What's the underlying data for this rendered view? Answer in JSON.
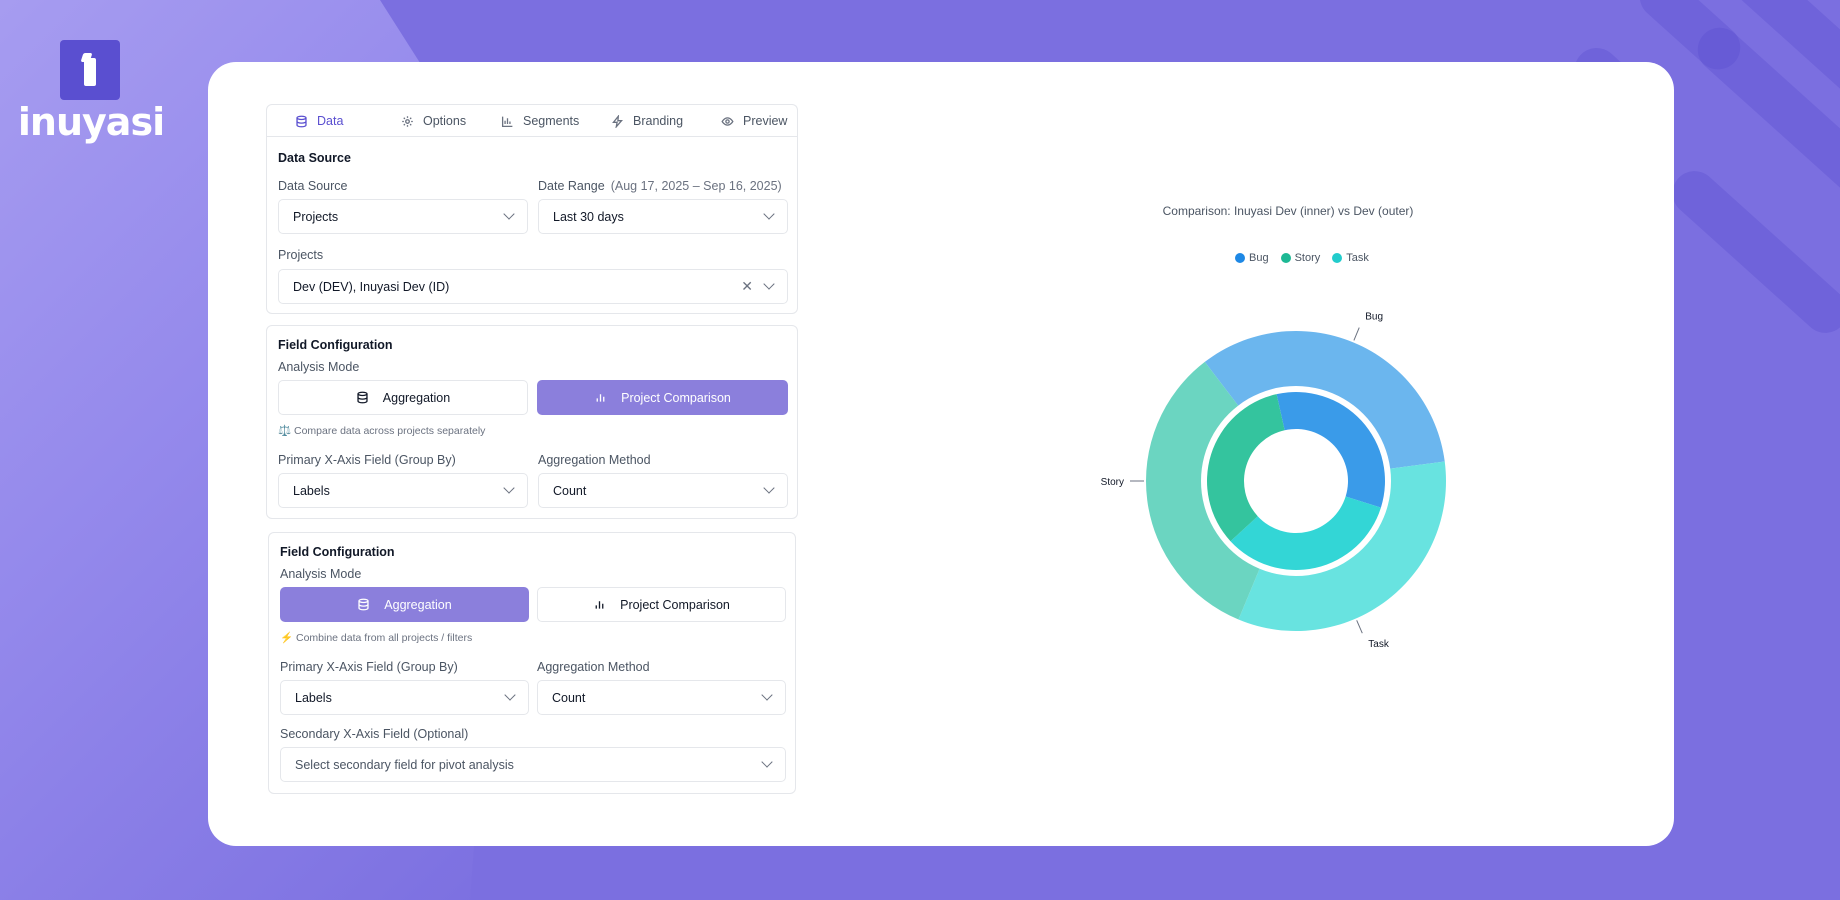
{
  "brand": {
    "name": "inuyasi"
  },
  "tabs": [
    {
      "label": "Data",
      "icon": "database-icon",
      "active": true
    },
    {
      "label": "Options",
      "icon": "gear-icon",
      "active": false
    },
    {
      "label": "Segments",
      "icon": "bar-chart-icon",
      "active": false
    },
    {
      "label": "Branding",
      "icon": "lightning-icon",
      "active": false
    },
    {
      "label": "Preview",
      "icon": "eye-icon",
      "active": false
    }
  ],
  "data_source": {
    "title": "Data Source",
    "source_label": "Data Source",
    "source_value": "Projects",
    "date_range_label": "Date Range",
    "date_range_hint": "(Aug 17, 2025 – Sep 16, 2025)",
    "date_range_value": "Last 30 days",
    "projects_label": "Projects",
    "projects_value": "Dev (DEV), Inuyasi Dev (ID)"
  },
  "field_config_1": {
    "title": "Field Configuration",
    "mode_label": "Analysis Mode",
    "aggregation_label": "Aggregation",
    "comparison_label": "Project Comparison",
    "active_mode": "comparison",
    "hint": "⚖️ Compare data across projects separately",
    "primary_label": "Primary X-Axis Field (Group By)",
    "primary_value": "Labels",
    "method_label": "Aggregation Method",
    "method_value": "Count"
  },
  "field_config_2": {
    "title": "Field Configuration",
    "mode_label": "Analysis Mode",
    "aggregation_label": "Aggregation",
    "comparison_label": "Project Comparison",
    "active_mode": "aggregation",
    "hint": "⚡ Combine data from all projects / filters",
    "primary_label": "Primary X-Axis Field (Group By)",
    "primary_value": "Labels",
    "method_label": "Aggregation Method",
    "method_value": "Count",
    "secondary_label": "Secondary X-Axis Field (Optional)",
    "secondary_placeholder": "Select secondary field for pivot analysis"
  },
  "chart_data": {
    "type": "pie",
    "subtype": "nested-donut",
    "title": "Comparison: Inuyasi Dev (inner) vs Dev (outer)",
    "categories": [
      "Bug",
      "Story",
      "Task"
    ],
    "colors": {
      "Bug": "#1e88e5",
      "Story": "#1db894",
      "Task": "#22cccc",
      "outer_Bug": "#6bb6ee",
      "outer_Story": "#6bd5c1",
      "outer_Task": "#68e3e0",
      "inner_Bug": "#3a9be9",
      "inner_Story": "#34c49e",
      "inner_Task": "#33d6d6"
    },
    "series": [
      {
        "name": "Inuyasi Dev",
        "ring": "inner",
        "values": [
          1,
          1,
          1
        ]
      },
      {
        "name": "Dev",
        "ring": "outer",
        "values": [
          1,
          1,
          1
        ]
      }
    ],
    "outer_labels": [
      "Bug",
      "Story",
      "Task"
    ],
    "legend_position": "top"
  }
}
